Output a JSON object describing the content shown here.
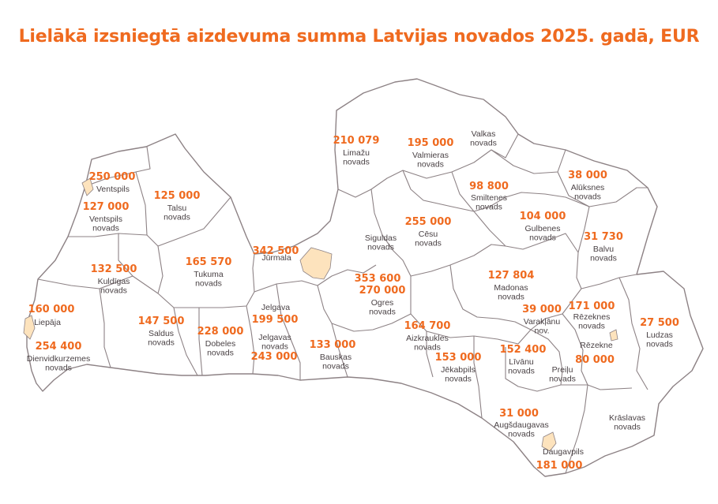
{
  "title": "Lielākā izsniegtā aizdevuma summa Latvijas novados 2025. gadā, EUR",
  "colors": {
    "accent": "#ef6a1f",
    "border": "#8d8285",
    "city_fill": "#fde3bd",
    "text": "#4a4245"
  },
  "regions": [
    {
      "value": "250 000",
      "name": [
        "Ventspils"
      ]
    },
    {
      "value": "127 000",
      "name": [
        "Ventspils",
        "novads"
      ]
    },
    {
      "value": "125 000",
      "name": [
        "Talsu",
        "novads"
      ]
    },
    {
      "value": "132 500",
      "name": [
        "Kuldīgas",
        "novads"
      ]
    },
    {
      "value": "165 570",
      "name": [
        "Tukuma",
        "novads"
      ]
    },
    {
      "value": "342 500",
      "name": [
        "Jūrmala"
      ]
    },
    {
      "value": "353 600",
      "name": [
        "Siguldas",
        "novads"
      ]
    },
    {
      "value": "210 079",
      "name": [
        "Limažu",
        "novads"
      ]
    },
    {
      "value": "195 000",
      "name": [
        "Valmieras",
        "novads"
      ]
    },
    {
      "value": "",
      "name": [
        "Valkas",
        "novads"
      ]
    },
    {
      "value": "98 800",
      "name": [
        "Smiltenes",
        "novads"
      ]
    },
    {
      "value": "38 000",
      "name": [
        "Alūksnes",
        "novads"
      ]
    },
    {
      "value": "255 000",
      "name": [
        "Cēsu",
        "novads"
      ]
    },
    {
      "value": "104 000",
      "name": [
        "Gulbenes",
        "novads"
      ]
    },
    {
      "value": "31 730",
      "name": [
        "Balvu",
        "novads"
      ]
    },
    {
      "value": "160 000",
      "name": [
        "Liepāja"
      ]
    },
    {
      "value": "254 400",
      "name": [
        "Dienvidkurzemes",
        "novads"
      ]
    },
    {
      "value": "147 500",
      "name": [
        "Saldus",
        "novads"
      ]
    },
    {
      "value": "228 000",
      "name": [
        "Dobeles",
        "novads"
      ]
    },
    {
      "value": "199 500",
      "name": [
        "Jelgava"
      ]
    },
    {
      "value": "243 000",
      "name": [
        "Jelgavas",
        "novads"
      ]
    },
    {
      "value": "133 000",
      "name": [
        "Bauskas",
        "novads"
      ]
    },
    {
      "value": "270 000",
      "name": [
        "Ogres",
        "novads"
      ]
    },
    {
      "value": "164 700",
      "name": [
        "Aizkraukles",
        "novads"
      ]
    },
    {
      "value": "127 804",
      "name": [
        "Madonas",
        "novads"
      ]
    },
    {
      "value": "39 000",
      "name": [
        "Varakļānu",
        "nov."
      ]
    },
    {
      "value": "171 000",
      "name": [
        "Rēzeknes",
        "novads"
      ]
    },
    {
      "value": "80 000",
      "name": [
        "Rēzekne"
      ]
    },
    {
      "value": "27 500",
      "name": [
        "Ludzas",
        "novads"
      ]
    },
    {
      "value": "153 000",
      "name": [
        "Jēkabpils",
        "novads"
      ]
    },
    {
      "value": "152 400",
      "name": [
        "Līvānu",
        "novads"
      ]
    },
    {
      "value": "",
      "name": [
        "Preiļu",
        "novads"
      ]
    },
    {
      "value": "31 000",
      "name": [
        "Augšdaugavas",
        "novads"
      ]
    },
    {
      "value": "",
      "name": [
        "Krāslavas",
        "novads"
      ]
    },
    {
      "value": "181 000",
      "name": [
        "Daugavpils"
      ]
    }
  ]
}
